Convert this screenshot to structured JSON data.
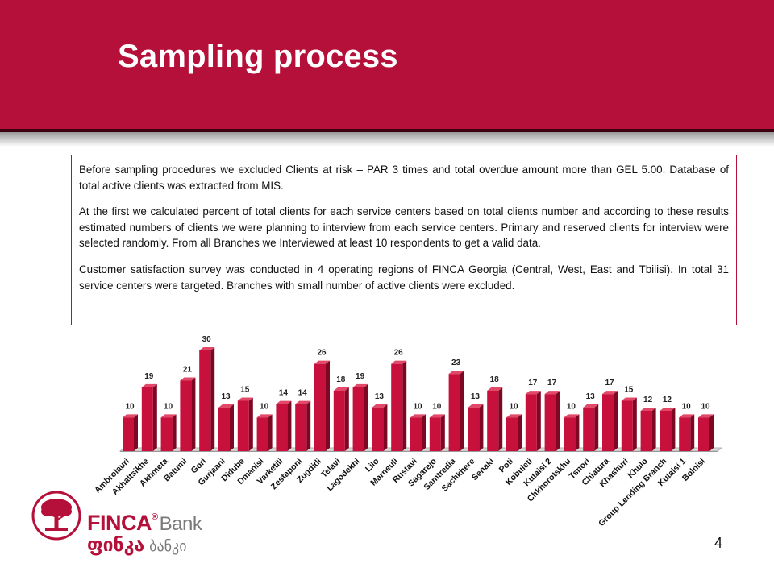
{
  "slide": {
    "title": "Sampling process",
    "page_number": "4"
  },
  "textbox": {
    "paragraphs": [
      "Before sampling procedures we excluded Clients at risk – PAR 3 times and total overdue amount more than GEL 5.00. Database of total active clients was extracted from MIS.",
      "At the first we calculated percent of total clients for each service centers based on total clients number and according to these results estimated numbers of clients we were planning to interview from each service centers. Primary and reserved clients for interview were selected randomly. From all Branches we Interviewed at least 10 respondents to get a valid data.",
      "Customer satisfaction survey was conducted in 4 operating regions of FINCA Georgia (Central, West, East and Tbilisi). In total 31 service centers were targeted. Branches with small number of active clients were excluded."
    ]
  },
  "logo": {
    "brand": "FINCA",
    "registered": "®",
    "bank": "Bank",
    "brand_georgian": "ფინკა",
    "bank_georgian": "ბანკი"
  },
  "colors": {
    "accent": "#b5103a",
    "bar_front": "#c8103c",
    "bar_side": "#7d0822",
    "bar_top": "#e24868"
  },
  "chart_data": {
    "type": "bar",
    "categories": [
      "Ambrolauri",
      "Akhaltsikhe",
      "Akhmeta",
      "Batumi",
      "Gori",
      "Gurjaani",
      "Didube",
      "Dmanisi",
      "Varketili",
      "Zestaponi",
      "Zugdidi",
      "Telavi",
      "Lagodekhi",
      "Lilo",
      "Marneuli",
      "Rustavi",
      "Sagarejo",
      "Samtredia",
      "Sachkhere",
      "Senaki",
      "Poti",
      "Kobuleti",
      "Kutaisi 2",
      "Chkhorotskhu",
      "Tsnori",
      "Chiatura",
      "Khashuri",
      "Khulo",
      "Group Lending Branch",
      "Kutaisi 1",
      "Bolnisi"
    ],
    "values": [
      10,
      19,
      10,
      21,
      30,
      13,
      15,
      10,
      14,
      14,
      26,
      18,
      19,
      13,
      26,
      10,
      10,
      23,
      13,
      18,
      10,
      17,
      17,
      10,
      13,
      17,
      15,
      12,
      12,
      10,
      10
    ],
    "ylim": [
      0,
      30
    ],
    "grid": false,
    "legend": "none",
    "style": "3d-column"
  }
}
